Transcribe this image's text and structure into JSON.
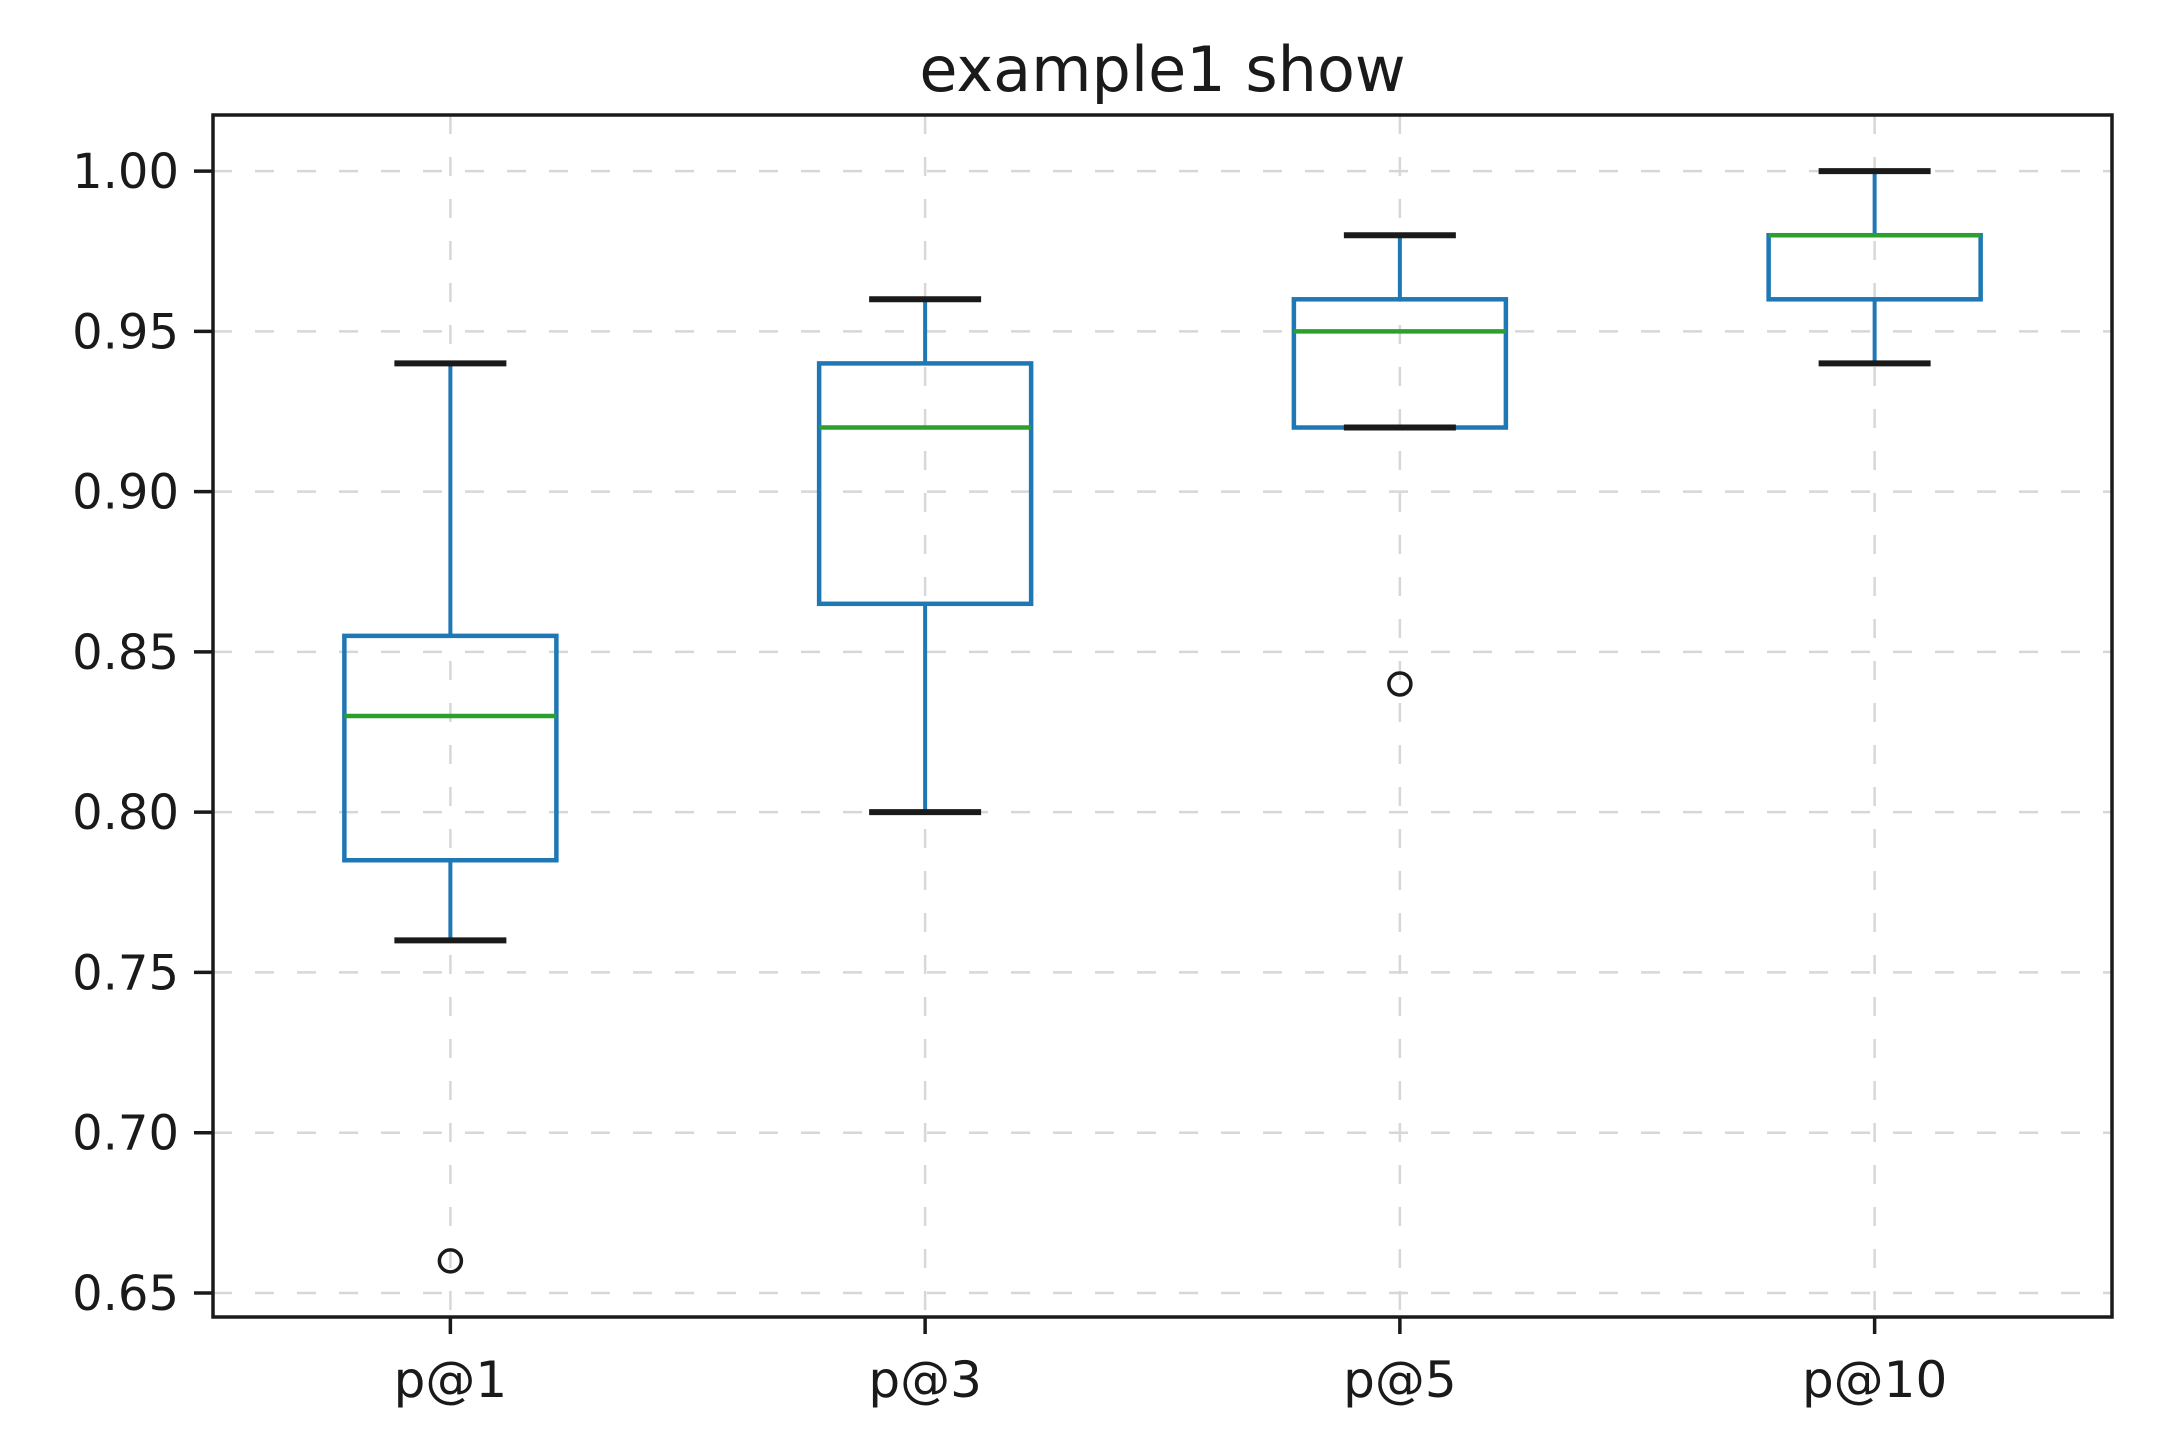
{
  "chart_data": {
    "type": "boxplot",
    "title": "example1 show",
    "categories": [
      "p@1",
      "p@3",
      "p@5",
      "p@10"
    ],
    "series": [
      {
        "name": "p@1",
        "whisker_low": 0.76,
        "q1": 0.785,
        "median": 0.83,
        "q3": 0.855,
        "whisker_high": 0.94,
        "outliers": [
          0.66
        ]
      },
      {
        "name": "p@3",
        "whisker_low": 0.8,
        "q1": 0.865,
        "median": 0.92,
        "q3": 0.94,
        "whisker_high": 0.96,
        "outliers": []
      },
      {
        "name": "p@5",
        "whisker_low": 0.92,
        "q1": 0.92,
        "median": 0.95,
        "q3": 0.96,
        "whisker_high": 0.98,
        "outliers": [
          0.84
        ]
      },
      {
        "name": "p@10",
        "whisker_low": 0.94,
        "q1": 0.96,
        "median": 0.98,
        "q3": 0.98,
        "whisker_high": 1.0,
        "outliers": []
      }
    ],
    "xlabel": "",
    "ylabel": "",
    "ylim": [
      0.6425,
      1.0175
    ],
    "yticks": [
      0.65,
      0.7,
      0.75,
      0.8,
      0.85,
      0.9,
      0.95,
      1.0
    ],
    "ytick_labels": [
      "0.65",
      "0.70",
      "0.75",
      "0.80",
      "0.85",
      "0.90",
      "0.95",
      "1.00"
    ],
    "grid": true,
    "grid_style": "dashed",
    "legend": "none",
    "colors": {
      "box": "#1f77b4",
      "whisker": "#1f77b4",
      "cap": "#1a1a1a",
      "median": "#2ca02c",
      "outlier_edge": "#1a1a1a",
      "grid": "#d7d7d7",
      "axis": "#1a1a1a",
      "text": "#1a1a1a",
      "background": "#ffffff"
    }
  }
}
